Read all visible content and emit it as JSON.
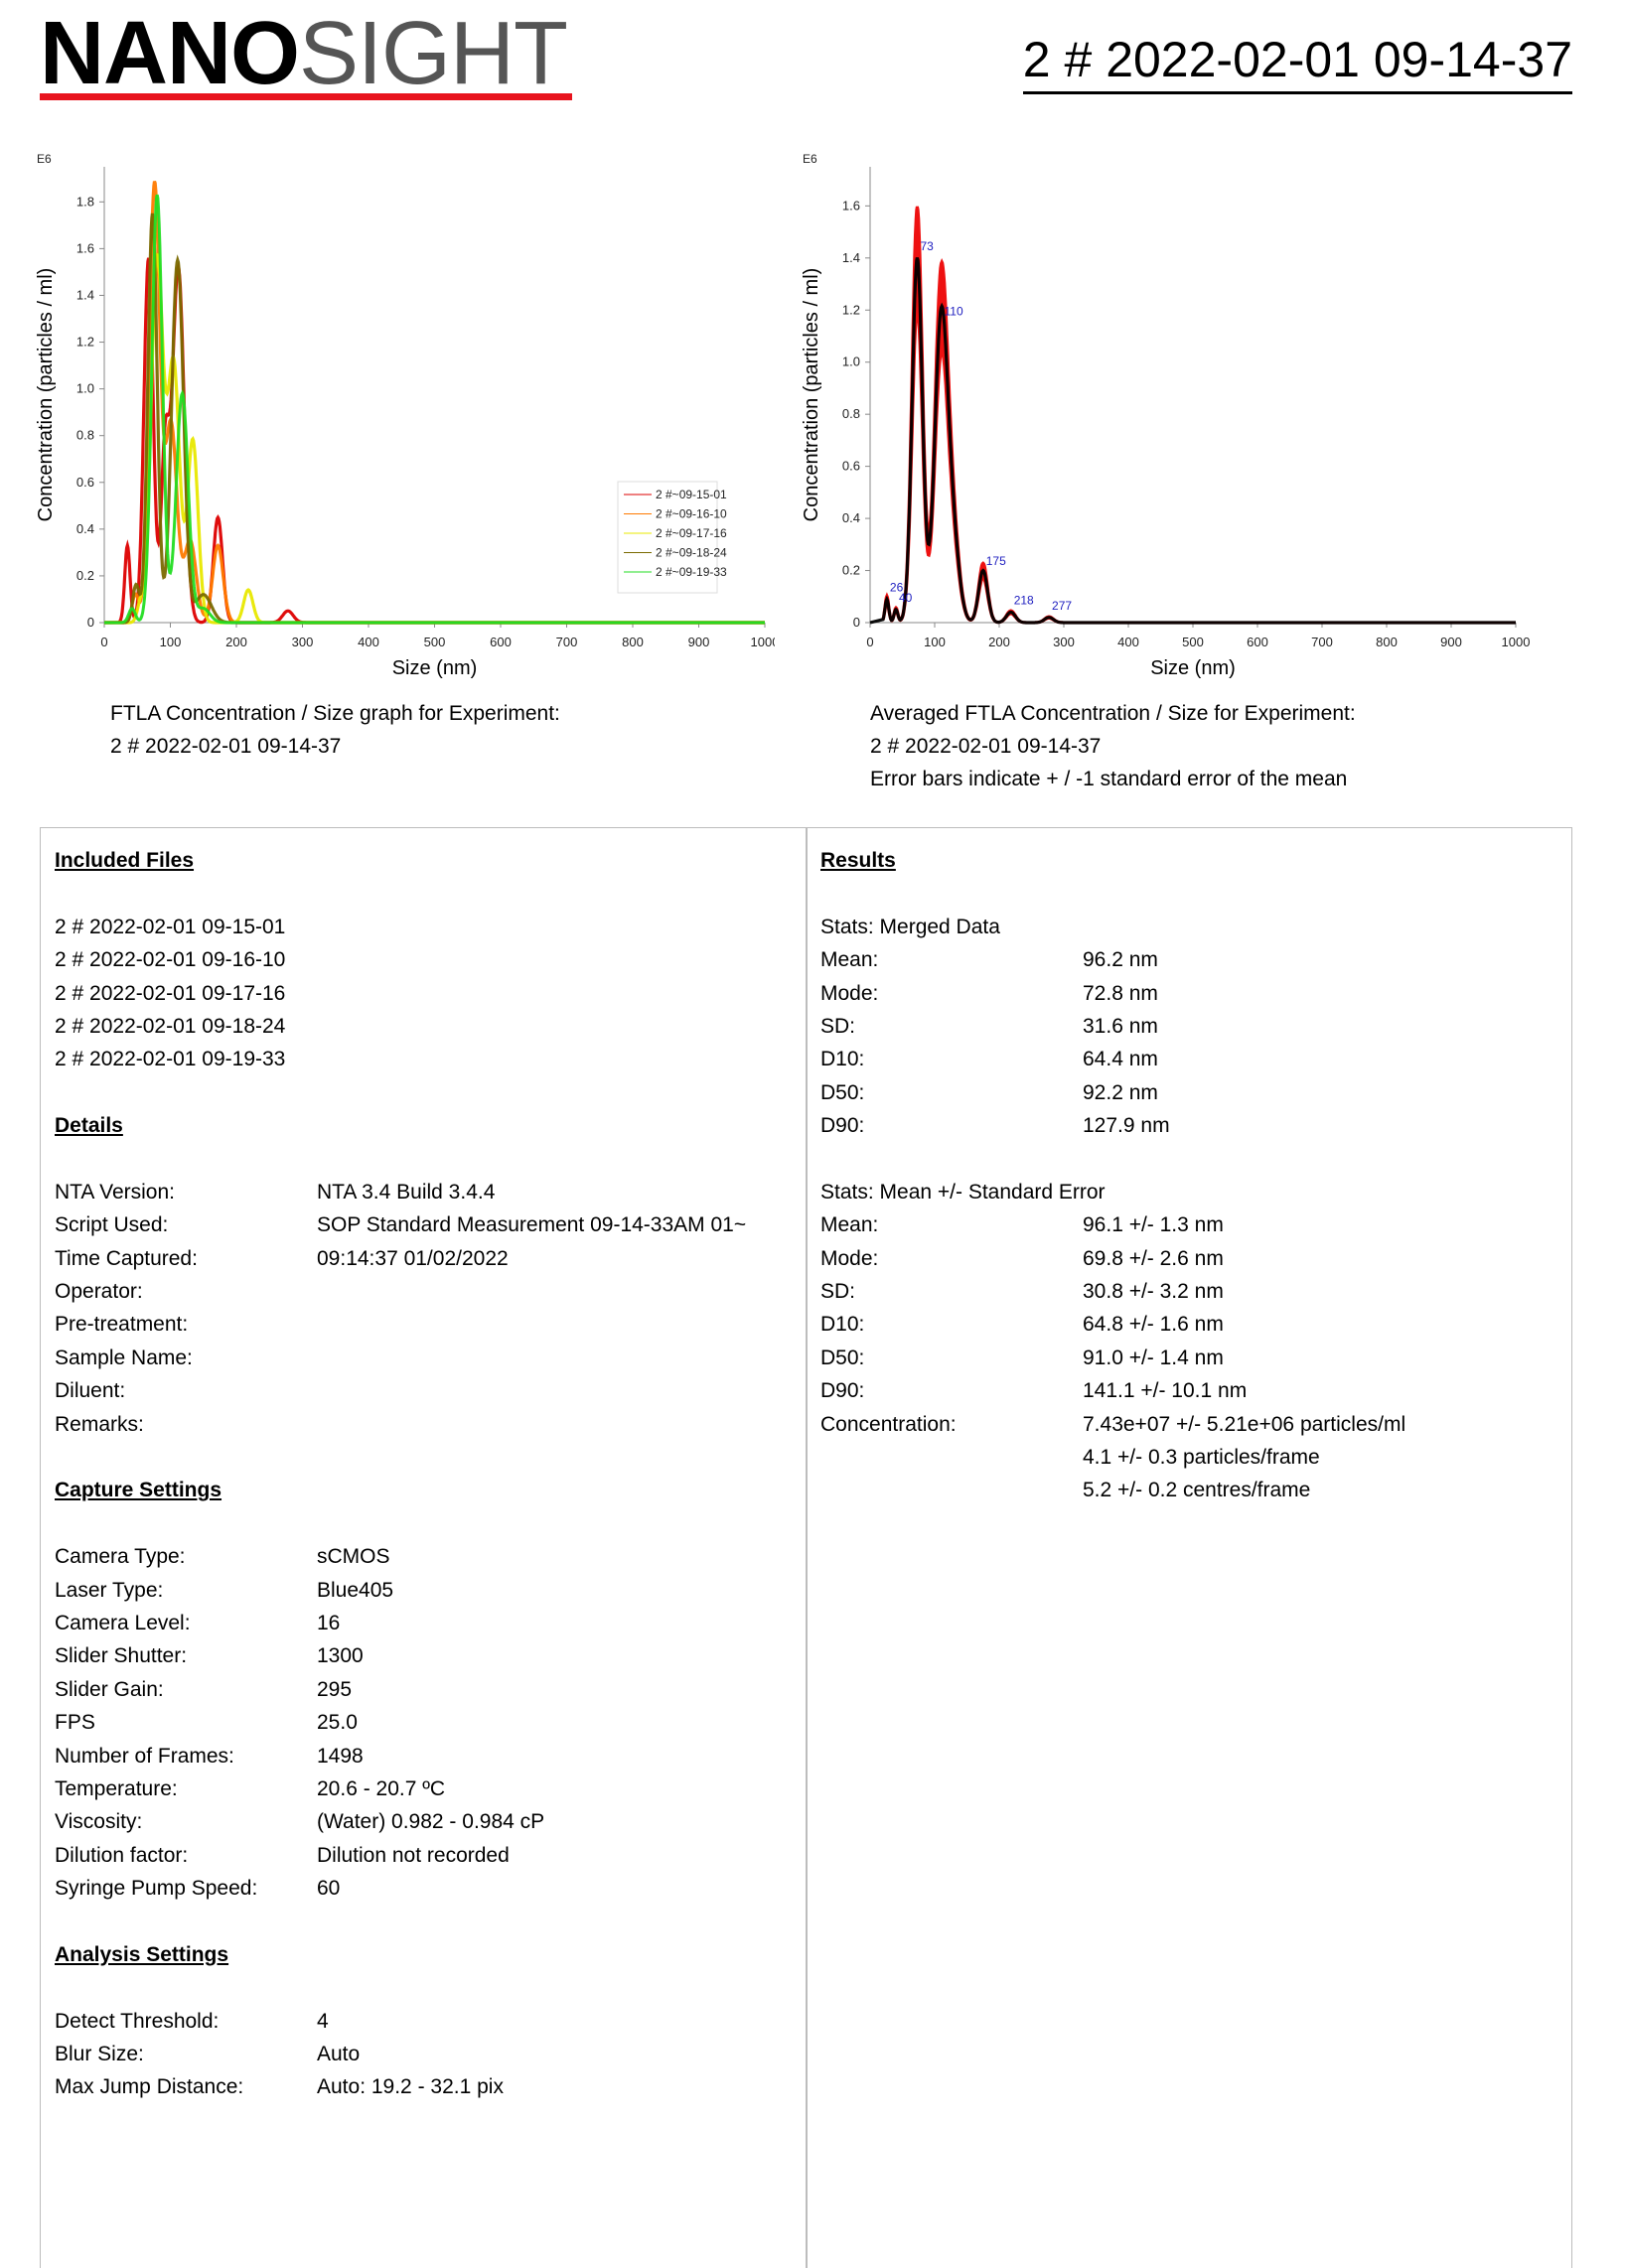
{
  "header": {
    "logo_bold": "NANO",
    "logo_light": "SIGHT",
    "report_title": "2 # 2022-02-01 09-14-37"
  },
  "colors": {
    "logo_line": "#e8141e",
    "annotation": "#2020c0"
  },
  "charts": [
    {
      "id": "chart1",
      "caption_lines": [
        "FTLA Concentration / Size graph for Experiment:",
        "2 # 2022-02-01 09-14-37"
      ],
      "chart_data": {
        "type": "line",
        "xlabel": "Size (nm)",
        "ylabel": "Concentration (particles / ml)",
        "yscale_label": "E6",
        "xlim": [
          0,
          1000
        ],
        "ylim": [
          0,
          1.95
        ],
        "xticks": [
          0,
          100,
          200,
          300,
          400,
          500,
          600,
          700,
          800,
          900,
          1000
        ],
        "yticks": [
          0,
          0.2,
          0.4,
          0.6,
          0.8,
          1.0,
          1.2,
          1.4,
          1.6,
          1.8
        ],
        "ytick_labels": [
          "0",
          "0.2",
          "0.4",
          "0.6",
          "0.8",
          "1.0",
          "1.2",
          "1.4",
          "1.6",
          "1.8"
        ],
        "legend_position": "right",
        "series": [
          {
            "name": "2 #~09-15-01",
            "color": "#dd0000",
            "peaks": [
              [
                35,
                0.33,
                4
              ],
              [
                67,
                1.56,
                7
              ],
              [
                92,
                0.72,
                6
              ],
              [
                112,
                1.52,
                9
              ],
              [
                172,
                0.45,
                7
              ],
              [
                278,
                0.05,
                8
              ]
            ]
          },
          {
            "name": "2 #~09-16-10",
            "color": "#ff7a00",
            "peaks": [
              [
                47,
                0.12,
                5
              ],
              [
                76,
                1.87,
                8
              ],
              [
                101,
                0.85,
                9
              ],
              [
                130,
                0.35,
                9
              ],
              [
                172,
                0.33,
                8
              ]
            ]
          },
          {
            "name": "2 #~09-17-16",
            "color": "#e8e800",
            "peaks": [
              [
                55,
                0.08,
                5
              ],
              [
                80,
                1.55,
                9
              ],
              [
                105,
                1.1,
                9
              ],
              [
                134,
                0.78,
                8
              ],
              [
                218,
                0.14,
                7
              ]
            ]
          },
          {
            "name": "2 #~09-18-24",
            "color": "#7a6a00",
            "peaks": [
              [
                48,
                0.16,
                5
              ],
              [
                73,
                1.75,
                7
              ],
              [
                111,
                1.55,
                9
              ],
              [
                150,
                0.12,
                12
              ]
            ]
          },
          {
            "name": "2 #~09-19-33",
            "color": "#22dd22",
            "peaks": [
              [
                42,
                0.06,
                5
              ],
              [
                80,
                1.83,
                8
              ],
              [
                118,
                0.98,
                9
              ],
              [
                150,
                0.06,
                10
              ]
            ]
          }
        ]
      }
    },
    {
      "id": "chart2",
      "caption_lines": [
        "Averaged FTLA Concentration / Size for Experiment:",
        "2 # 2022-02-01 09-14-37",
        "Error bars indicate + / -1 standard error of the mean"
      ],
      "chart_data": {
        "type": "line",
        "xlabel": "Size (nm)",
        "ylabel": "Concentration (particles / ml)",
        "yscale_label": "E6",
        "xlim": [
          0,
          1000
        ],
        "ylim": [
          0,
          1.75
        ],
        "xticks": [
          0,
          100,
          200,
          300,
          400,
          500,
          600,
          700,
          800,
          900,
          1000
        ],
        "yticks": [
          0,
          0.2,
          0.4,
          0.6,
          0.8,
          1.0,
          1.2,
          1.4,
          1.6
        ],
        "ytick_labels": [
          "0",
          "0.2",
          "0.4",
          "0.6",
          "0.8",
          "1.0",
          "1.2",
          "1.4",
          "1.6"
        ],
        "series": [
          {
            "name": "",
            "color": "#000000",
            "peaks": [
              [
                26,
                0.09,
                3
              ],
              [
                40,
                0.05,
                3
              ],
              [
                73,
                1.4,
                8
              ],
              [
                110,
                1.15,
                10
              ],
              [
                128,
                0.3,
                10
              ],
              [
                175,
                0.2,
                7
              ],
              [
                218,
                0.04,
                7
              ],
              [
                277,
                0.02,
                7
              ]
            ],
            "error_color": "#ee1111",
            "error_frac": 0.14
          }
        ],
        "annotations": [
          {
            "x": 26,
            "y": 0.09,
            "label": "26"
          },
          {
            "x": 40,
            "y": 0.05,
            "label": "40"
          },
          {
            "x": 73,
            "y": 1.4,
            "label": "73"
          },
          {
            "x": 110,
            "y": 1.15,
            "label": "110"
          },
          {
            "x": 175,
            "y": 0.19,
            "label": "175"
          },
          {
            "x": 218,
            "y": 0.04,
            "label": "218"
          },
          {
            "x": 277,
            "y": 0.02,
            "label": "277"
          }
        ]
      }
    }
  ],
  "left_column": [
    {
      "type": "heading",
      "text": "Included Files"
    },
    {
      "type": "blank"
    },
    {
      "type": "text",
      "text": "2 # 2022-02-01 09-15-01"
    },
    {
      "type": "text",
      "text": "2 # 2022-02-01 09-16-10"
    },
    {
      "type": "text",
      "text": "2 # 2022-02-01 09-17-16"
    },
    {
      "type": "text",
      "text": "2 # 2022-02-01 09-18-24"
    },
    {
      "type": "text",
      "text": "2 # 2022-02-01 09-19-33"
    },
    {
      "type": "blank"
    },
    {
      "type": "heading",
      "text": "Details"
    },
    {
      "type": "blank"
    },
    {
      "type": "kv",
      "label": "NTA Version:",
      "value": "NTA 3.4 Build 3.4.4"
    },
    {
      "type": "kv",
      "label": "Script Used:",
      "value": "SOP Standard Measurement 09-14-33AM 01~"
    },
    {
      "type": "kv",
      "label": "Time Captured:",
      "value": "09:14:37  01/02/2022"
    },
    {
      "type": "kv",
      "label": "Operator:",
      "value": ""
    },
    {
      "type": "kv",
      "label": "Pre-treatment:",
      "value": ""
    },
    {
      "type": "kv",
      "label": "Sample Name:",
      "value": ""
    },
    {
      "type": "kv",
      "label": "Diluent:",
      "value": ""
    },
    {
      "type": "kv",
      "label": "Remarks:",
      "value": ""
    },
    {
      "type": "blank"
    },
    {
      "type": "heading",
      "text": "Capture Settings"
    },
    {
      "type": "blank"
    },
    {
      "type": "kv",
      "label": "Camera Type:",
      "value": "sCMOS"
    },
    {
      "type": "kv",
      "label": "Laser Type:",
      "value": "Blue405"
    },
    {
      "type": "kv",
      "label": "Camera Level:",
      "value": "16"
    },
    {
      "type": "kv",
      "label": "Slider Shutter:",
      "value": "1300"
    },
    {
      "type": "kv",
      "label": "Slider Gain:",
      "value": "295"
    },
    {
      "type": "kv",
      "label": "FPS",
      "value": "25.0"
    },
    {
      "type": "kv",
      "label": "Number of Frames:",
      "value": "1498"
    },
    {
      "type": "kv",
      "label": "Temperature:",
      "value": "20.6 - 20.7 ºC"
    },
    {
      "type": "kv",
      "label": "Viscosity:",
      "value": "(Water) 0.982 - 0.984 cP"
    },
    {
      "type": "kv",
      "label": "Dilution factor:",
      "value": "Dilution not recorded"
    },
    {
      "type": "kv",
      "label": "Syringe Pump Speed:",
      "value": "60"
    },
    {
      "type": "blank"
    },
    {
      "type": "heading",
      "text": "Analysis Settings"
    },
    {
      "type": "blank"
    },
    {
      "type": "kv",
      "label": "Detect Threshold:",
      "value": "4"
    },
    {
      "type": "kv",
      "label": "Blur Size:",
      "value": "Auto"
    },
    {
      "type": "kv",
      "label": "Max Jump Distance:",
      "value": "Auto: 19.2 - 32.1 pix"
    }
  ],
  "right_column": [
    {
      "type": "heading",
      "text": "Results"
    },
    {
      "type": "blank"
    },
    {
      "type": "text",
      "text": "Stats: Merged Data"
    },
    {
      "type": "kv",
      "label": "Mean:",
      "value": "96.2 nm"
    },
    {
      "type": "kv",
      "label": "Mode:",
      "value": "72.8 nm"
    },
    {
      "type": "kv",
      "label": "SD:",
      "value": "31.6 nm"
    },
    {
      "type": "kv",
      "label": "D10:",
      "value": "64.4 nm"
    },
    {
      "type": "kv",
      "label": "D50:",
      "value": "92.2 nm"
    },
    {
      "type": "kv",
      "label": "D90:",
      "value": "127.9 nm"
    },
    {
      "type": "blank"
    },
    {
      "type": "text",
      "text": "Stats: Mean +/- Standard Error"
    },
    {
      "type": "kv",
      "label": "Mean:",
      "value": "96.1 +/- 1.3 nm"
    },
    {
      "type": "kv",
      "label": "Mode:",
      "value": "69.8 +/- 2.6 nm"
    },
    {
      "type": "kv",
      "label": "SD:",
      "value": "30.8 +/- 3.2 nm"
    },
    {
      "type": "kv",
      "label": "D10:",
      "value": "64.8 +/- 1.6 nm"
    },
    {
      "type": "kv",
      "label": "D50:",
      "value": "91.0 +/- 1.4 nm"
    },
    {
      "type": "kv",
      "label": "D90:",
      "value": "141.1 +/- 10.1 nm"
    },
    {
      "type": "kv",
      "label": "Concentration:",
      "value": "7.43e+07 +/- 5.21e+06 particles/ml"
    },
    {
      "type": "kv",
      "label": "",
      "value": "4.1 +/- 0.3 particles/frame"
    },
    {
      "type": "kv",
      "label": "",
      "value": "5.2 +/- 0.2 centres/frame"
    }
  ]
}
